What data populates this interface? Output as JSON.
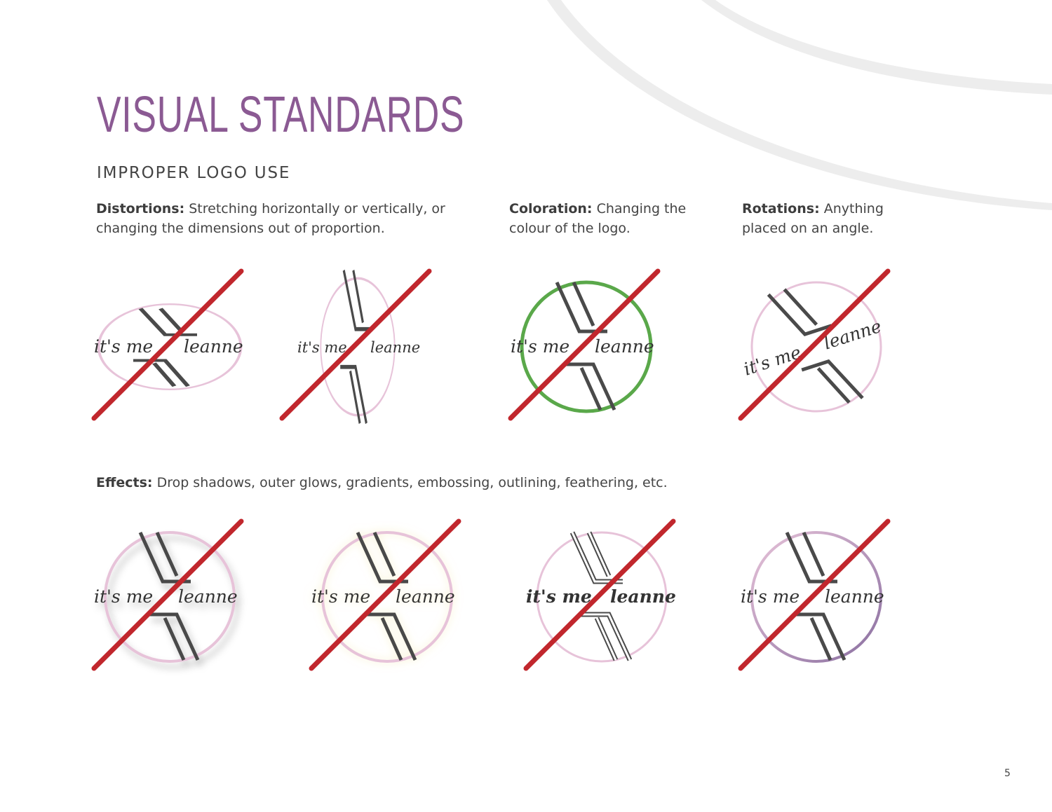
{
  "page": {
    "title": "VISUAL STANDARDS",
    "subtitle": "IMPROPER LOGO USE",
    "page_number": "5"
  },
  "sections": {
    "distortions": {
      "label": "Distortions:",
      "text": "Stretching horizontally or vertically, or changing the dimensions out of proportion."
    },
    "coloration": {
      "label": "Coloration:",
      "text": "Changing the colour of the logo."
    },
    "rotations": {
      "label": "Rotations:",
      "text": "Anything placed on an angle."
    },
    "effects": {
      "label": "Effects:",
      "text": "Drop shadows, outer glows, gradients, embossing, outlining, feathering, etc."
    }
  },
  "logo": {
    "word_left": "it's me",
    "word_right": "leanne"
  },
  "colors": {
    "title": "#8b5a93",
    "strike": "#c1272d",
    "ring_pink": "#e7c3d9",
    "ring_green": "#5aa84a",
    "mark": "#4a4a4a",
    "swoosh": "#ececec"
  }
}
